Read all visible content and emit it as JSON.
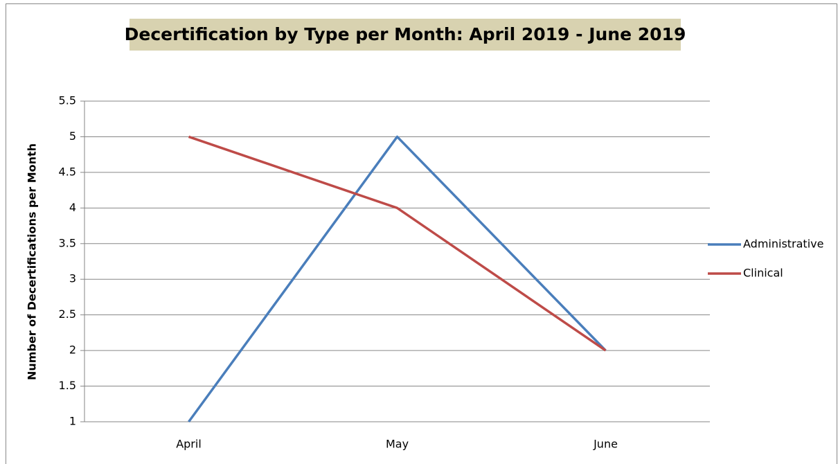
{
  "chart_data": {
    "type": "line",
    "title": "Decertification by Type per Month: April 2019 - June 2019",
    "y_label": "Number of Decertifications per Month",
    "categories": [
      "April",
      "May",
      "June"
    ],
    "series": [
      {
        "name": "Administrative",
        "color": "#4a7ebb",
        "values": [
          1,
          5,
          2
        ]
      },
      {
        "name": "Clinical",
        "color": "#be4b48",
        "values": [
          5,
          4,
          2
        ]
      }
    ],
    "ylim": [
      1,
      5.5
    ],
    "yticks": [
      1,
      1.5,
      2,
      2.5,
      3,
      3.5,
      4,
      4.5,
      5,
      5.5
    ],
    "grid": true,
    "legend": "right"
  }
}
